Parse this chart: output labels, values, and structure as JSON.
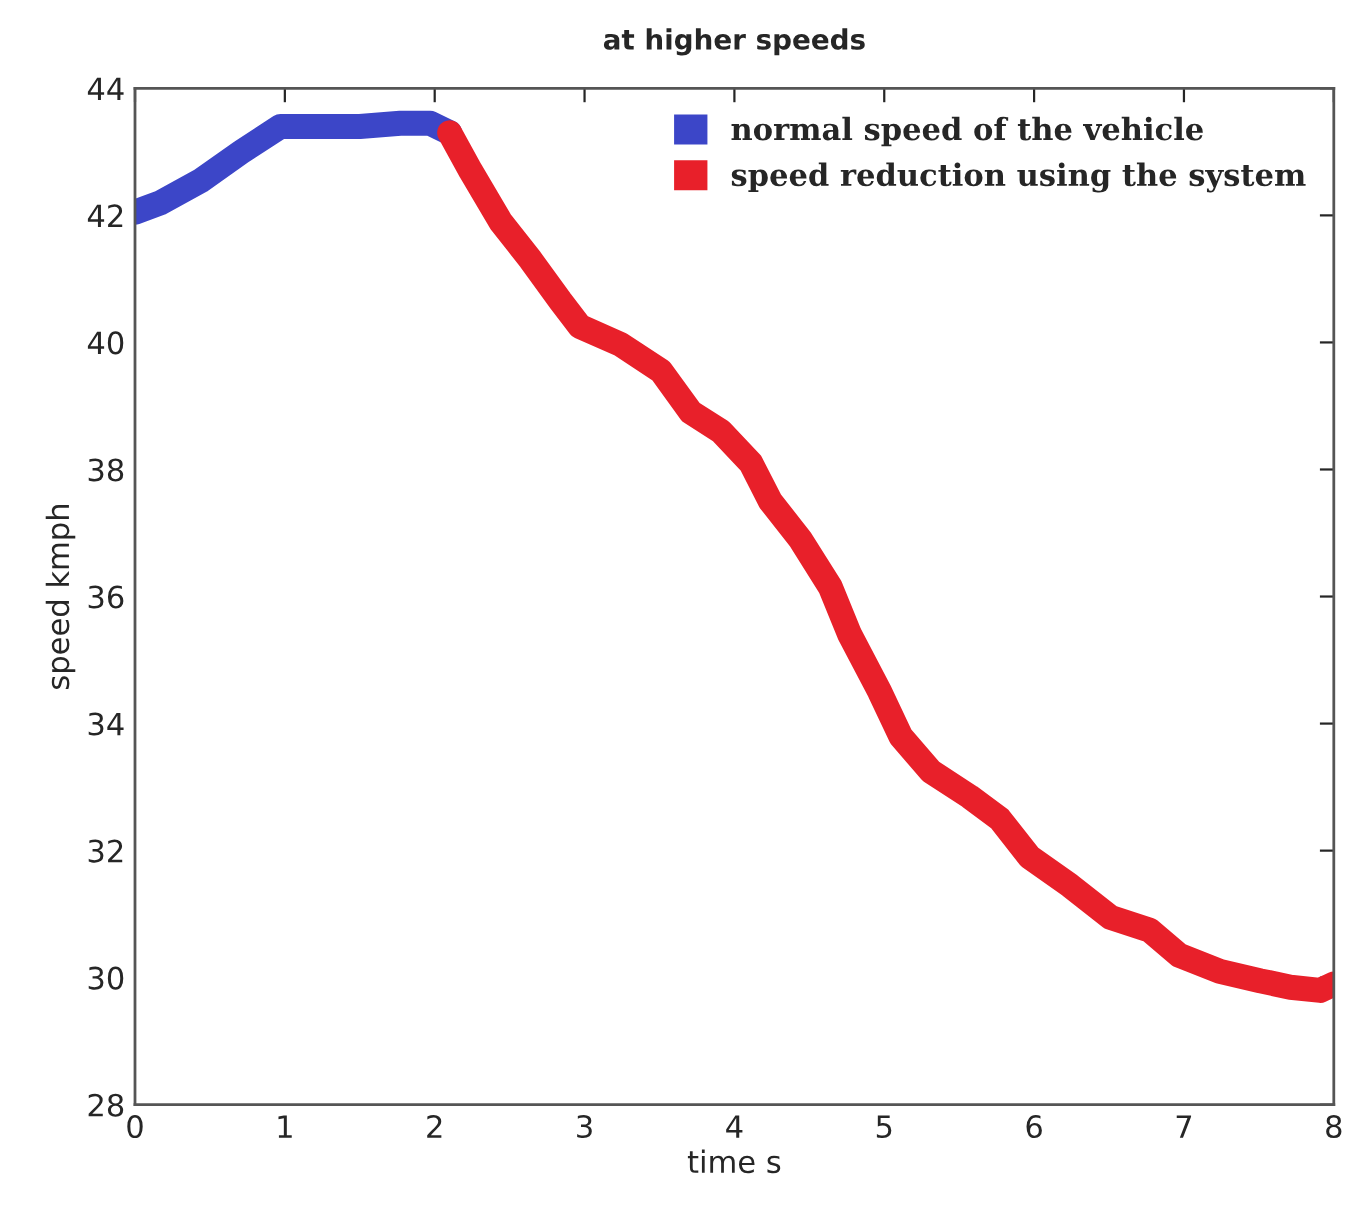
{
  "chart_data": {
    "type": "line",
    "title": "at higher speeds",
    "xlabel": "time s",
    "ylabel": "speed kmph",
    "xlim": [
      0,
      8
    ],
    "ylim": [
      28,
      44
    ],
    "xticks": [
      0,
      1,
      2,
      3,
      4,
      5,
      6,
      7,
      8
    ],
    "yticks": [
      28,
      30,
      32,
      34,
      36,
      38,
      40,
      42,
      44
    ],
    "grid": false,
    "legend": "top right",
    "marker": "none",
    "line_style": "solid",
    "series": [
      {
        "name": "normal speed of the vehicle",
        "color": "#3c46c8",
        "x": [
          0,
          0.17,
          0.44,
          0.71,
          0.97,
          1.24,
          1.5,
          1.77,
          1.97,
          2.1
        ],
        "values": [
          42.05,
          42.2,
          42.55,
          43.0,
          43.4,
          43.4,
          43.4,
          43.45,
          43.45,
          43.3
        ]
      },
      {
        "name": "speed reduction using the system",
        "color": "#e8202a",
        "x": [
          2.1,
          2.24,
          2.44,
          2.64,
          2.84,
          2.97,
          3.24,
          3.51,
          3.71,
          3.91,
          4.11,
          4.24,
          4.44,
          4.64,
          4.77,
          4.97,
          5.11,
          5.31,
          5.57,
          5.77,
          5.97,
          6.24,
          6.51,
          6.77,
          6.97,
          7.24,
          7.51,
          7.71,
          7.91,
          8.0
        ],
        "values": [
          43.3,
          42.7,
          41.9,
          41.3,
          40.65,
          40.25,
          39.97,
          39.55,
          38.9,
          38.6,
          38.1,
          37.5,
          36.9,
          36.15,
          35.4,
          34.5,
          33.8,
          33.25,
          32.85,
          32.5,
          31.9,
          31.45,
          30.95,
          30.75,
          30.35,
          30.1,
          29.95,
          29.85,
          29.8,
          29.9
        ]
      }
    ]
  }
}
